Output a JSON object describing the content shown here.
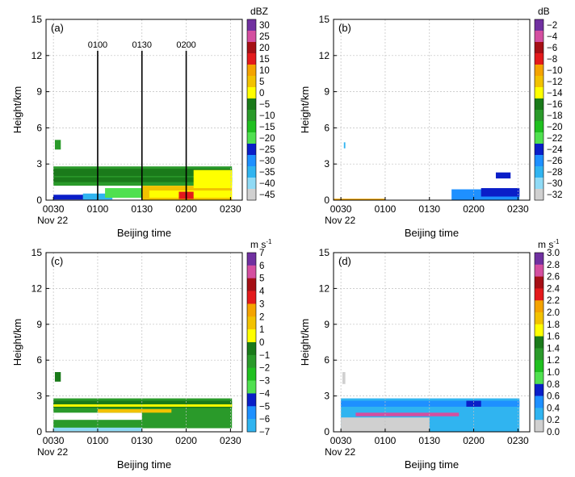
{
  "colors": {
    "background": "#ffffff",
    "grid": "#bfbfbf",
    "axis": "#000000"
  },
  "chart_data": [
    {
      "type": "heatmap",
      "panel_label": "(a)",
      "xlabel": "Beijing time",
      "ylabel": "Height/km",
      "x_ticks": [
        "0030",
        "0100",
        "0130",
        "0200",
        "0230"
      ],
      "x_tick_values": [
        0,
        30,
        60,
        90,
        120
      ],
      "x_sublabel": "Nov 22",
      "xlim": [
        -5,
        128
      ],
      "y_ticks": [
        "0",
        "3",
        "6",
        "9",
        "12",
        "15"
      ],
      "ylim": [
        0,
        15
      ],
      "grid": true,
      "colorbar": {
        "unit": "dBZ",
        "unit_sup": "",
        "labels": [
          "30",
          "25",
          "20",
          "15",
          "10",
          "5",
          "0",
          "−5",
          "−10",
          "−15",
          "−20",
          "−25",
          "−30",
          "−35",
          "−40",
          "−45"
        ],
        "colors": [
          "#7030a0",
          "#d44fa0",
          "#a50f15",
          "#e31a1c",
          "#f4a300",
          "#f2c200",
          "#ffff00",
          "#1a7a1a",
          "#2a9a2a",
          "#20c020",
          "#50e050",
          "#0a1ec8",
          "#1e90ff",
          "#30b4f0",
          "#8fdaf5",
          "#d0d0d0"
        ]
      },
      "annotations": [
        {
          "text": "0100",
          "x": 30,
          "y_top": 12.4,
          "y_bottom": 0
        },
        {
          "text": "0130",
          "x": 60,
          "y_top": 12.4,
          "y_bottom": 0
        },
        {
          "text": "0200",
          "x": 90,
          "y_top": 12.4,
          "y_bottom": 0
        }
      ],
      "regions": [
        {
          "x": [
            0,
            121
          ],
          "y": [
            1.2,
            2.8
          ],
          "color": "#2a9a2a"
        },
        {
          "x": [
            0,
            121
          ],
          "y": [
            2.0,
            2.6
          ],
          "color": "#1a7a1a"
        },
        {
          "x": [
            0,
            121
          ],
          "y": [
            1.5,
            1.9
          ],
          "color": "#1a7a1a"
        },
        {
          "x": [
            0,
            30
          ],
          "y": [
            0.05,
            0.45
          ],
          "color": "#0a1ec8"
        },
        {
          "x": [
            20,
            40
          ],
          "y": [
            0.05,
            0.55
          ],
          "color": "#30b4f0"
        },
        {
          "x": [
            35,
            65
          ],
          "y": [
            0.2,
            1.0
          ],
          "color": "#50e050"
        },
        {
          "x": [
            60,
            121
          ],
          "y": [
            0.0,
            1.2
          ],
          "color": "#f2c200"
        },
        {
          "x": [
            65,
            121
          ],
          "y": [
            0.2,
            0.8
          ],
          "color": "#ffff00"
        },
        {
          "x": [
            85,
            95
          ],
          "y": [
            0.1,
            0.7
          ],
          "color": "#e31a1c"
        },
        {
          "x": [
            95,
            121
          ],
          "y": [
            1.0,
            2.5
          ],
          "color": "#ffff00"
        },
        {
          "x": [
            1,
            5
          ],
          "y": [
            4.2,
            5.0
          ],
          "color": "#2a9a2a"
        }
      ]
    },
    {
      "type": "heatmap",
      "panel_label": "(b)",
      "xlabel": "Beijing time",
      "ylabel": "Height/km",
      "x_ticks": [
        "0030",
        "0100",
        "0130",
        "0200",
        "0230"
      ],
      "x_tick_values": [
        0,
        30,
        60,
        90,
        120
      ],
      "x_sublabel": "Nov 22",
      "xlim": [
        -5,
        128
      ],
      "y_ticks": [
        "0",
        "3",
        "6",
        "9",
        "12",
        "15"
      ],
      "ylim": [
        0,
        15
      ],
      "grid": true,
      "colorbar": {
        "unit": "dB",
        "unit_sup": "",
        "labels": [
          "−2",
          "−4",
          "−6",
          "−8",
          "−10",
          "−12",
          "−14",
          "−16",
          "−18",
          "−20",
          "−22",
          "−24",
          "−26",
          "−28",
          "−30",
          "−32"
        ],
        "colors": [
          "#7030a0",
          "#d44fa0",
          "#a50f15",
          "#e31a1c",
          "#f4a300",
          "#f2c200",
          "#ffff00",
          "#1a7a1a",
          "#2a9a2a",
          "#20c020",
          "#50e050",
          "#0a1ec8",
          "#1e90ff",
          "#30b4f0",
          "#8fdaf5",
          "#d0d0d0"
        ]
      },
      "annotations": [],
      "regions": [
        {
          "x": [
            -5,
            30
          ],
          "y": [
            0.0,
            0.12
          ],
          "color": "#f4a300"
        },
        {
          "x": [
            75,
            121
          ],
          "y": [
            0.0,
            0.9
          ],
          "color": "#1e90ff"
        },
        {
          "x": [
            95,
            121
          ],
          "y": [
            0.3,
            1.0
          ],
          "color": "#0a1ec8"
        },
        {
          "x": [
            105,
            115
          ],
          "y": [
            1.8,
            2.3
          ],
          "color": "#0a1ec8"
        },
        {
          "x": [
            2,
            3
          ],
          "y": [
            4.3,
            4.8
          ],
          "color": "#30b4f0"
        }
      ]
    },
    {
      "type": "heatmap",
      "panel_label": "(c)",
      "xlabel": "Beijing time",
      "ylabel": "Height/km",
      "x_ticks": [
        "0030",
        "0100",
        "0130",
        "0200",
        "0230"
      ],
      "x_tick_values": [
        0,
        30,
        60,
        90,
        120
      ],
      "x_sublabel": "Nov 22",
      "xlim": [
        -5,
        128
      ],
      "y_ticks": [
        "0",
        "3",
        "6",
        "9",
        "12",
        "15"
      ],
      "ylim": [
        0,
        15
      ],
      "grid": true,
      "colorbar": {
        "unit": "m s",
        "unit_sup": "-1",
        "labels": [
          "7",
          "6",
          "5",
          "4",
          "3",
          "2",
          "1",
          "0",
          "−1",
          "−2",
          "−3",
          "−4",
          "−5",
          "−6",
          "−7"
        ],
        "colors": [
          "#7030a0",
          "#d44fa0",
          "#a50f15",
          "#e31a1c",
          "#f4a300",
          "#f2c200",
          "#ffff00",
          "#1a7a1a",
          "#2a9a2a",
          "#20c020",
          "#50e050",
          "#0a1ec8",
          "#1e90ff",
          "#30b4f0"
        ]
      },
      "annotations": [],
      "regions": [
        {
          "x": [
            0,
            121
          ],
          "y": [
            0.3,
            2.8
          ],
          "color": "#2a9a2a"
        },
        {
          "x": [
            0,
            121
          ],
          "y": [
            2.0,
            2.6
          ],
          "color": "#1a7a1a"
        },
        {
          "x": [
            0,
            60
          ],
          "y": [
            1.0,
            1.6
          ],
          "color": "#ffffff"
        },
        {
          "x": [
            0,
            121
          ],
          "y": [
            2.1,
            2.3
          ],
          "color": "#ffff00"
        },
        {
          "x": [
            30,
            80
          ],
          "y": [
            1.6,
            1.9
          ],
          "color": "#f2c200"
        },
        {
          "x": [
            0,
            60
          ],
          "y": [
            0.05,
            0.35
          ],
          "color": "#8fdaf5"
        },
        {
          "x": [
            1,
            5
          ],
          "y": [
            4.2,
            5.0
          ],
          "color": "#1a7a1a"
        }
      ]
    },
    {
      "type": "heatmap",
      "panel_label": "(d)",
      "xlabel": "Beijing time",
      "ylabel": "Height/km",
      "x_ticks": [
        "0030",
        "0100",
        "0130",
        "0200",
        "0230"
      ],
      "x_tick_values": [
        0,
        30,
        60,
        90,
        120
      ],
      "x_sublabel": "Nov 22",
      "xlim": [
        -5,
        128
      ],
      "y_ticks": [
        "0",
        "3",
        "6",
        "9",
        "12",
        "15"
      ],
      "ylim": [
        0,
        15
      ],
      "grid": true,
      "colorbar": {
        "unit": "m s",
        "unit_sup": "-1",
        "labels": [
          "3.0",
          "2.8",
          "2.6",
          "2.4",
          "2.2",
          "2.0",
          "1.8",
          "1.6",
          "1.4",
          "1.2",
          "1.0",
          "0.8",
          "0.6",
          "0.4",
          "0.2",
          "0.0"
        ],
        "colors": [
          "#7030a0",
          "#d44fa0",
          "#a50f15",
          "#e31a1c",
          "#f4a300",
          "#f2c200",
          "#ffff00",
          "#1a7a1a",
          "#2a9a2a",
          "#20c020",
          "#50e050",
          "#0a1ec8",
          "#1e90ff",
          "#30b4f0",
          "#d0d0d0"
        ]
      },
      "annotations": [],
      "regions": [
        {
          "x": [
            0,
            121
          ],
          "y": [
            0.0,
            2.8
          ],
          "color": "#30b4f0"
        },
        {
          "x": [
            0,
            60
          ],
          "y": [
            0.0,
            1.2
          ],
          "color": "#d0d0d0"
        },
        {
          "x": [
            0,
            121
          ],
          "y": [
            2.1,
            2.6
          ],
          "color": "#1e90ff"
        },
        {
          "x": [
            85,
            95
          ],
          "y": [
            2.1,
            2.6
          ],
          "color": "#0a1ec8"
        },
        {
          "x": [
            10,
            80
          ],
          "y": [
            1.3,
            1.6
          ],
          "color": "#d44fa0"
        },
        {
          "x": [
            1,
            3
          ],
          "y": [
            4.0,
            5.0
          ],
          "color": "#d0d0d0"
        }
      ]
    }
  ]
}
